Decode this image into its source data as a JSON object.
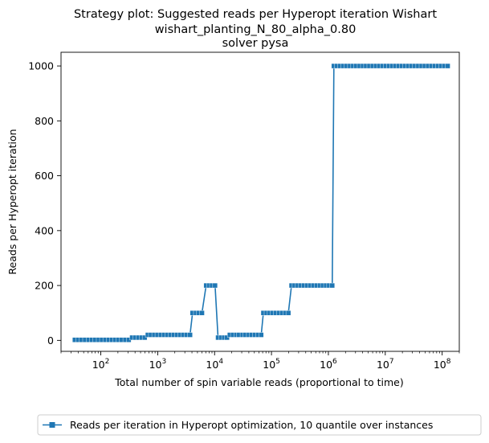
{
  "chart_data": {
    "type": "line",
    "title": [
      "Strategy plot: Suggested reads per Hyperopt iteration Wishart",
      "wishart_planting_N_80_alpha_0.80",
      "solver pysa"
    ],
    "xlabel": "Total number of spin variable reads (proportional to time)",
    "ylabel": "Reads per Hyperopt iteration",
    "xscale": "log",
    "xlim": [
      20,
      200000000
    ],
    "ylim": [
      -40,
      1050
    ],
    "x_tick_labels": [
      "10",
      "2",
      "10",
      "3",
      "10",
      "4",
      "10",
      "5",
      "10",
      "6",
      "10",
      "7",
      "10",
      "8"
    ],
    "x_ticks": [
      100,
      1000,
      10000,
      100000,
      1000000,
      10000000,
      100000000
    ],
    "y_tick_labels": [
      "0",
      "200",
      "400",
      "600",
      "800",
      "1000"
    ],
    "y_ticks": [
      0,
      200,
      400,
      600,
      800,
      1000
    ],
    "grid": false,
    "legend_position": "below-chart",
    "series_color": "#1f77b4",
    "marker": "square",
    "series": [
      {
        "name": "Reads per iteration in Hyperopt optimization, 10 quantile over instances",
        "points": [
          [
            35,
            2
          ],
          [
            40,
            2
          ],
          [
            46,
            2
          ],
          [
            53,
            2
          ],
          [
            61,
            2
          ],
          [
            70,
            2
          ],
          [
            80,
            2
          ],
          [
            92,
            2
          ],
          [
            105,
            2
          ],
          [
            120,
            2
          ],
          [
            138,
            2
          ],
          [
            158,
            2
          ],
          [
            180,
            2
          ],
          [
            205,
            2
          ],
          [
            235,
            2
          ],
          [
            270,
            2
          ],
          [
            310,
            2
          ],
          [
            355,
            10
          ],
          [
            400,
            10
          ],
          [
            460,
            10
          ],
          [
            520,
            10
          ],
          [
            590,
            10
          ],
          [
            670,
            20
          ],
          [
            760,
            20
          ],
          [
            870,
            20
          ],
          [
            990,
            20
          ],
          [
            1130,
            20
          ],
          [
            1290,
            20
          ],
          [
            1470,
            20
          ],
          [
            1680,
            20
          ],
          [
            1920,
            20
          ],
          [
            2190,
            20
          ],
          [
            2500,
            20
          ],
          [
            2850,
            20
          ],
          [
            3250,
            20
          ],
          [
            3700,
            20
          ],
          [
            4100,
            100
          ],
          [
            4700,
            100
          ],
          [
            5300,
            100
          ],
          [
            6000,
            100
          ],
          [
            7100,
            200
          ],
          [
            8000,
            200
          ],
          [
            9000,
            200
          ],
          [
            10200,
            200
          ],
          [
            11500,
            10
          ],
          [
            13000,
            10
          ],
          [
            14700,
            10
          ],
          [
            16500,
            10
          ],
          [
            18500,
            20
          ],
          [
            21000,
            20
          ],
          [
            24000,
            20
          ],
          [
            27000,
            20
          ],
          [
            31000,
            20
          ],
          [
            35000,
            20
          ],
          [
            40000,
            20
          ],
          [
            45000,
            20
          ],
          [
            51000,
            20
          ],
          [
            58000,
            20
          ],
          [
            66000,
            20
          ],
          [
            72000,
            100
          ],
          [
            82000,
            100
          ],
          [
            93000,
            100
          ],
          [
            105000,
            100
          ],
          [
            120000,
            100
          ],
          [
            136000,
            100
          ],
          [
            154000,
            100
          ],
          [
            175000,
            100
          ],
          [
            198000,
            100
          ],
          [
            225000,
            200
          ],
          [
            255000,
            200
          ],
          [
            290000,
            200
          ],
          [
            330000,
            200
          ],
          [
            375000,
            200
          ],
          [
            425000,
            200
          ],
          [
            480000,
            200
          ],
          [
            545000,
            200
          ],
          [
            620000,
            200
          ],
          [
            705000,
            200
          ],
          [
            800000,
            200
          ],
          [
            910000,
            200
          ],
          [
            1030000,
            200
          ],
          [
            1170000,
            200
          ],
          [
            1250000,
            1000
          ],
          [
            1420000,
            1000
          ],
          [
            1620000,
            1000
          ],
          [
            1840000,
            1000
          ],
          [
            2100000,
            1000
          ],
          [
            2400000,
            1000
          ],
          [
            2730000,
            1000
          ],
          [
            3100000,
            1000
          ],
          [
            3550000,
            1000
          ],
          [
            4050000,
            1000
          ],
          [
            4600000,
            1000
          ],
          [
            5250000,
            1000
          ],
          [
            6000000,
            1000
          ],
          [
            6850000,
            1000
          ],
          [
            7800000,
            1000
          ],
          [
            8900000,
            1000
          ],
          [
            10200000,
            1000
          ],
          [
            11600000,
            1000
          ],
          [
            13200000,
            1000
          ],
          [
            15100000,
            1000
          ],
          [
            17200000,
            1000
          ],
          [
            19600000,
            1000
          ],
          [
            22400000,
            1000
          ],
          [
            25600000,
            1000
          ],
          [
            29200000,
            1000
          ],
          [
            33300000,
            1000
          ],
          [
            38000000,
            1000
          ],
          [
            43400000,
            1000
          ],
          [
            49500000,
            1000
          ],
          [
            56500000,
            1000
          ],
          [
            64500000,
            1000
          ],
          [
            73600000,
            1000
          ],
          [
            84000000,
            1000
          ],
          [
            95900000,
            1000
          ],
          [
            109000000,
            1000
          ],
          [
            125000000,
            1000
          ]
        ]
      }
    ]
  }
}
